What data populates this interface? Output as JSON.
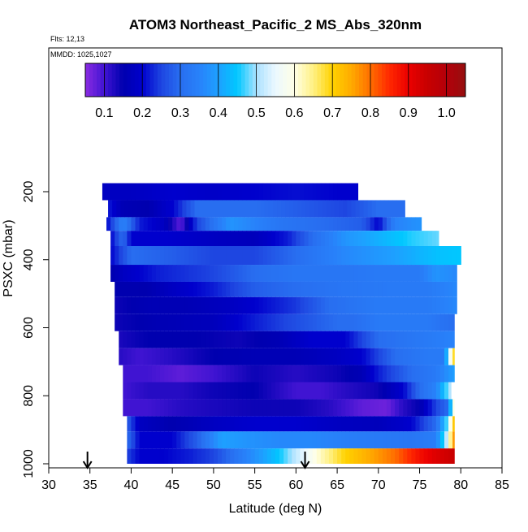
{
  "chart_data": {
    "type": "heatmap",
    "title": "ATOM3 Northeast_Pacific_2 MS_Abs_320nm",
    "subtitle_flights": "Flts: 12,13",
    "subtitle_dates": "MMDD: 1025,1027",
    "xlabel": "Latitude (deg N)",
    "ylabel": "PSXC (mbar)",
    "xlim": [
      30,
      85
    ],
    "ylim": [
      1000,
      0
    ],
    "x_ticks": [
      30,
      35,
      40,
      45,
      50,
      55,
      60,
      65,
      70,
      75,
      80,
      85
    ],
    "y_ticks": [
      200,
      400,
      600,
      800,
      1000
    ],
    "colorbar": {
      "min": 0.05,
      "max": 1.05,
      "ticks": [
        0.1,
        0.2,
        0.3,
        0.4,
        0.5,
        0.6,
        0.7,
        0.8,
        0.9,
        1.0
      ],
      "tick_labels": [
        "0.1",
        "0.2",
        "0.3",
        "0.4",
        "0.5",
        "0.6",
        "0.7",
        "0.8",
        "0.9",
        "1.0"
      ]
    },
    "arrows_latitude": [
      34.7,
      61.1
    ],
    "rows": [
      {
        "p_top": 175,
        "p_bot": 225,
        "x_start": 36.5,
        "x_end": 67.5,
        "keys": [
          [
            36.5,
            0.18
          ],
          [
            40,
            0.18
          ],
          [
            45,
            0.2
          ],
          [
            50,
            0.19
          ],
          [
            55,
            0.2
          ],
          [
            60,
            0.21
          ],
          [
            65,
            0.2
          ],
          [
            67.5,
            0.2
          ]
        ]
      },
      {
        "p_top": 225,
        "p_bot": 275,
        "x_start": 37.2,
        "x_end": 73.2,
        "keys": [
          [
            37.2,
            0.22
          ],
          [
            39,
            0.16
          ],
          [
            42,
            0.15
          ],
          [
            45,
            0.2
          ],
          [
            48,
            0.3
          ],
          [
            55,
            0.3
          ],
          [
            60,
            0.28
          ],
          [
            66,
            0.25
          ],
          [
            70,
            0.3
          ],
          [
            73.2,
            0.3
          ]
        ]
      },
      {
        "p_top": 275,
        "p_bot": 315,
        "x_start": 37,
        "x_end": 75.2,
        "keys": [
          [
            37,
            0.2
          ],
          [
            39,
            0.35
          ],
          [
            41,
            0.22
          ],
          [
            44,
            0.18
          ],
          [
            46,
            0.08
          ],
          [
            48,
            0.25
          ],
          [
            52,
            0.38
          ],
          [
            55,
            0.35
          ],
          [
            58,
            0.32
          ],
          [
            63,
            0.3
          ],
          [
            68,
            0.28
          ],
          [
            70,
            0.2
          ],
          [
            72,
            0.35
          ],
          [
            75.2,
            0.38
          ]
        ]
      },
      {
        "p_top": 315,
        "p_bot": 360,
        "x_start": 37.5,
        "x_end": 77.3,
        "keys": [
          [
            37.5,
            0.2
          ],
          [
            39,
            0.3
          ],
          [
            40,
            0.2
          ],
          [
            44,
            0.2
          ],
          [
            50,
            0.18
          ],
          [
            55,
            0.17
          ],
          [
            59,
            0.22
          ],
          [
            62,
            0.3
          ],
          [
            66,
            0.38
          ],
          [
            70,
            0.42
          ],
          [
            74,
            0.46
          ],
          [
            77.3,
            0.48
          ]
        ]
      },
      {
        "p_top": 360,
        "p_bot": 415,
        "x_start": 37.5,
        "x_end": 80,
        "keys": [
          [
            37.5,
            0.2
          ],
          [
            40,
            0.3
          ],
          [
            45,
            0.28
          ],
          [
            50,
            0.25
          ],
          [
            55,
            0.25
          ],
          [
            60,
            0.3
          ],
          [
            66,
            0.36
          ],
          [
            72,
            0.4
          ],
          [
            77,
            0.44
          ],
          [
            80,
            0.45
          ]
        ]
      },
      {
        "p_top": 415,
        "p_bot": 465,
        "x_start": 37.5,
        "x_end": 79.5,
        "keys": [
          [
            37.5,
            0.15
          ],
          [
            39,
            0.18
          ],
          [
            43,
            0.22
          ],
          [
            50,
            0.25
          ],
          [
            55,
            0.3
          ],
          [
            60,
            0.32
          ],
          [
            66,
            0.32
          ],
          [
            70,
            0.33
          ],
          [
            75,
            0.33
          ],
          [
            77,
            0.38
          ],
          [
            79.5,
            0.36
          ]
        ]
      },
      {
        "p_top": 465,
        "p_bot": 510,
        "x_start": 38,
        "x_end": 79.5,
        "keys": [
          [
            38,
            0.15
          ],
          [
            42,
            0.15
          ],
          [
            45,
            0.18
          ],
          [
            50,
            0.22
          ],
          [
            55,
            0.28
          ],
          [
            60,
            0.3
          ],
          [
            66,
            0.32
          ],
          [
            72,
            0.33
          ],
          [
            76,
            0.33
          ],
          [
            79.5,
            0.36
          ]
        ]
      },
      {
        "p_top": 510,
        "p_bot": 560,
        "x_start": 38,
        "x_end": 79.5,
        "keys": [
          [
            38,
            0.14
          ],
          [
            42,
            0.16
          ],
          [
            47,
            0.16
          ],
          [
            52,
            0.18
          ],
          [
            55,
            0.2
          ],
          [
            60,
            0.24
          ],
          [
            64,
            0.3
          ],
          [
            70,
            0.33
          ],
          [
            76,
            0.33
          ],
          [
            79.5,
            0.36
          ]
        ]
      },
      {
        "p_top": 560,
        "p_bot": 610,
        "x_start": 38,
        "x_end": 79.2,
        "keys": [
          [
            38,
            0.14
          ],
          [
            44,
            0.16
          ],
          [
            50,
            0.17
          ],
          [
            55,
            0.22
          ],
          [
            60,
            0.26
          ],
          [
            65,
            0.3
          ],
          [
            67,
            0.3
          ],
          [
            70,
            0.33
          ],
          [
            76,
            0.33
          ],
          [
            79.2,
            0.3
          ]
        ]
      },
      {
        "p_top": 610,
        "p_bot": 660,
        "x_start": 38.5,
        "x_end": 79.2,
        "keys": [
          [
            38.5,
            0.13
          ],
          [
            42,
            0.15
          ],
          [
            48,
            0.15
          ],
          [
            53,
            0.14
          ],
          [
            58,
            0.16
          ],
          [
            62,
            0.2
          ],
          [
            66,
            0.2
          ],
          [
            70,
            0.3
          ],
          [
            76,
            0.33
          ],
          [
            79.2,
            0.35
          ]
        ]
      },
      {
        "p_top": 660,
        "p_bot": 710,
        "x_start": 38.5,
        "x_end": 79.2,
        "keys": [
          [
            38.5,
            0.12
          ],
          [
            41,
            0.1
          ],
          [
            45,
            0.12
          ],
          [
            50,
            0.15
          ],
          [
            55,
            0.16
          ],
          [
            60,
            0.16
          ],
          [
            65,
            0.18
          ],
          [
            68,
            0.2
          ],
          [
            72,
            0.3
          ],
          [
            76,
            0.33
          ],
          [
            78,
            0.33
          ],
          [
            79.2,
            0.72
          ]
        ]
      },
      {
        "p_top": 710,
        "p_bot": 760,
        "x_start": 39,
        "x_end": 79.2,
        "keys": [
          [
            39,
            0.1
          ],
          [
            42,
            0.1
          ],
          [
            46,
            0.08
          ],
          [
            50,
            0.1
          ],
          [
            55,
            0.14
          ],
          [
            60,
            0.12
          ],
          [
            65,
            0.14
          ],
          [
            68,
            0.16
          ],
          [
            70,
            0.22
          ],
          [
            74,
            0.3
          ],
          [
            77,
            0.33
          ],
          [
            79.2,
            0.4
          ]
        ]
      },
      {
        "p_top": 760,
        "p_bot": 810,
        "x_start": 39,
        "x_end": 78.8,
        "keys": [
          [
            39,
            0.1
          ],
          [
            42,
            0.12
          ],
          [
            46,
            0.12
          ],
          [
            50,
            0.14
          ],
          [
            55,
            0.15
          ],
          [
            58,
            0.12
          ],
          [
            60,
            0.1
          ],
          [
            63,
            0.1
          ],
          [
            66,
            0.12
          ],
          [
            70,
            0.14
          ],
          [
            73,
            0.2
          ],
          [
            75,
            0.3
          ],
          [
            77,
            0.35
          ],
          [
            78.8,
            0.52
          ]
        ]
      },
      {
        "p_top": 810,
        "p_bot": 860,
        "x_start": 39,
        "x_end": 79.2,
        "keys": [
          [
            39,
            0.1
          ],
          [
            42,
            0.1
          ],
          [
            46,
            0.12
          ],
          [
            50,
            0.13
          ],
          [
            55,
            0.14
          ],
          [
            60,
            0.14
          ],
          [
            64,
            0.12
          ],
          [
            68,
            0.08
          ],
          [
            71,
            0.07
          ],
          [
            73,
            0.12
          ],
          [
            75,
            0.15
          ],
          [
            77,
            0.25
          ],
          [
            78.5,
            0.3
          ],
          [
            79.2,
            0.65
          ]
        ]
      },
      {
        "p_top": 860,
        "p_bot": 905,
        "x_start": 39.5,
        "x_end": 79.2,
        "keys": [
          [
            39.5,
            0.28
          ],
          [
            41,
            0.18
          ],
          [
            45,
            0.15
          ],
          [
            50,
            0.18
          ],
          [
            55,
            0.2
          ],
          [
            60,
            0.2
          ],
          [
            65,
            0.18
          ],
          [
            70,
            0.17
          ],
          [
            74,
            0.2
          ],
          [
            77,
            0.3
          ],
          [
            78.5,
            0.5
          ],
          [
            79.2,
            0.75
          ]
        ]
      },
      {
        "p_top": 905,
        "p_bot": 955,
        "x_start": 39.5,
        "x_end": 79.2,
        "keys": [
          [
            39.5,
            0.3
          ],
          [
            41,
            0.2
          ],
          [
            45,
            0.2
          ],
          [
            48,
            0.28
          ],
          [
            51,
            0.4
          ],
          [
            54,
            0.38
          ],
          [
            58,
            0.36
          ],
          [
            62,
            0.36
          ],
          [
            66,
            0.34
          ],
          [
            70,
            0.33
          ],
          [
            74,
            0.32
          ],
          [
            77,
            0.34
          ],
          [
            78.5,
            0.55
          ],
          [
            79.2,
            0.8
          ]
        ]
      },
      {
        "p_top": 955,
        "p_bot": 1000,
        "x_start": 39.5,
        "x_end": 79.2,
        "keys": [
          [
            39.5,
            0.25
          ],
          [
            41,
            0.2
          ],
          [
            44,
            0.2
          ],
          [
            47,
            0.22
          ],
          [
            50,
            0.25
          ],
          [
            54,
            0.35
          ],
          [
            58,
            0.45
          ],
          [
            61,
            0.55
          ],
          [
            63,
            0.62
          ],
          [
            66,
            0.7
          ],
          [
            69,
            0.75
          ],
          [
            72,
            0.8
          ],
          [
            75,
            0.88
          ],
          [
            77,
            0.92
          ],
          [
            79.2,
            0.95
          ]
        ]
      }
    ]
  }
}
